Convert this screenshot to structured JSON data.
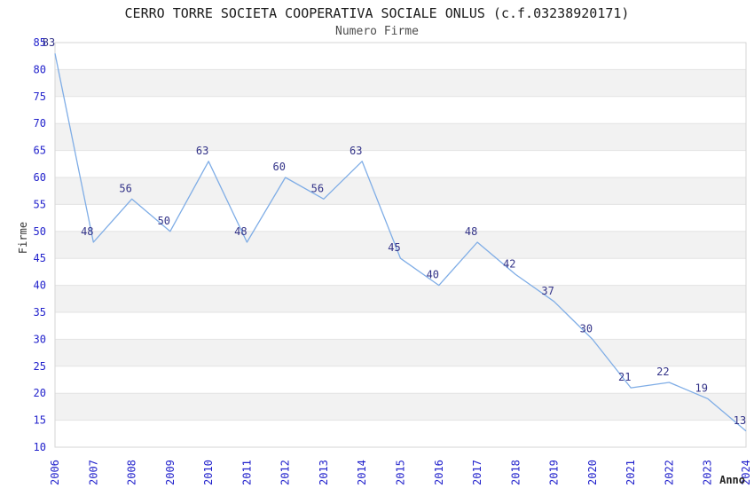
{
  "header": {
    "title": "CERRO TORRE SOCIETA COOPERATIVA SOCIALE ONLUS (c.f.03238920171)",
    "subtitle": "Numero Firme"
  },
  "chart_data": {
    "type": "line",
    "title": "CERRO TORRE SOCIETA COOPERATIVA SOCIALE ONLUS (c.f.03238920171)",
    "subtitle": "Numero Firme",
    "xlabel": "Anno",
    "ylabel": "Firme",
    "categories": [
      "2006",
      "2007",
      "2008",
      "2009",
      "2010",
      "2011",
      "2012",
      "2013",
      "2014",
      "2015",
      "2016",
      "2017",
      "2018",
      "2019",
      "2020",
      "2021",
      "2022",
      "2023",
      "2024"
    ],
    "values": [
      83,
      48,
      56,
      50,
      63,
      48,
      60,
      56,
      63,
      45,
      40,
      48,
      42,
      37,
      30,
      21,
      22,
      19,
      13
    ],
    "ylim": [
      10,
      85
    ],
    "ytick_step": 5,
    "grid": true,
    "legend": "none",
    "band_fill": "alternating horizontal white/gray stripes of 5 units",
    "colors": {
      "line": "#7fade6",
      "tick": "#2222cc",
      "label": "#333388",
      "band": "#f2f2f2",
      "gridline": "#e3e3e3",
      "border": "#d6d6d6",
      "title": "#1a1a1a",
      "axis_title": "#333333"
    }
  }
}
